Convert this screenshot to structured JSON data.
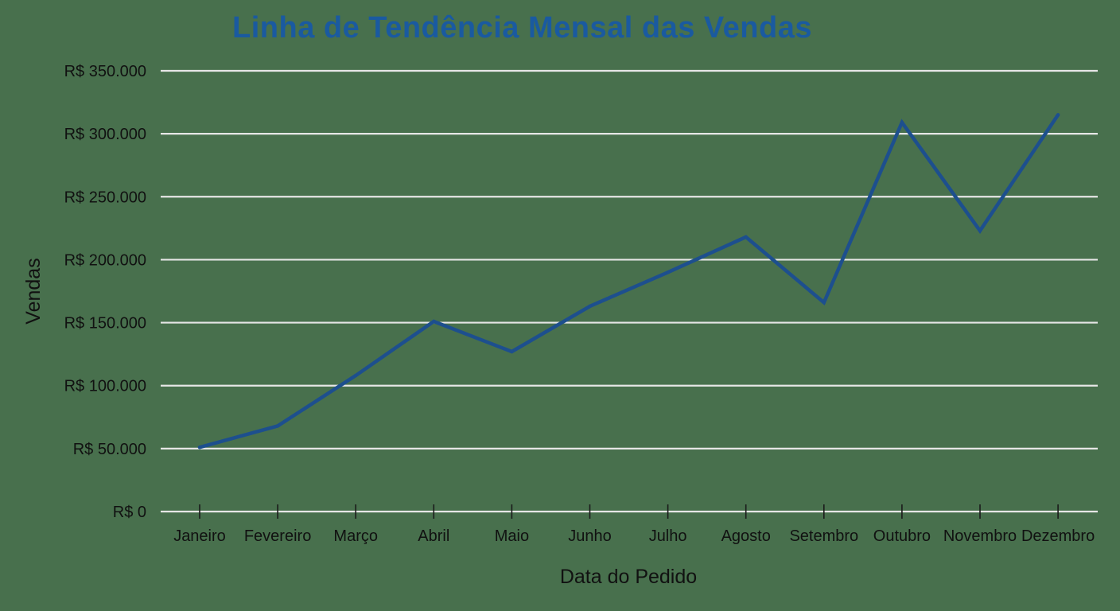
{
  "colors": {
    "background": "#48704d",
    "title": "#1a5aa0",
    "line": "#1d4f8e",
    "grid": "#e6e6e6",
    "text": "#111111"
  },
  "chart_data": {
    "type": "line",
    "title": "Linha de Tendência Mensal das Vendas",
    "xlabel": "Data do Pedido",
    "ylabel": "Vendas",
    "categories": [
      "Janeiro",
      "Fevereiro",
      "Março",
      "Abril",
      "Maio",
      "Junho",
      "Julho",
      "Agosto",
      "Setembro",
      "Outubro",
      "Novembro",
      "Dezembro"
    ],
    "series": [
      {
        "values": [
          51000,
          68000,
          108000,
          151000,
          127000,
          163000,
          190000,
          218000,
          166000,
          309000,
          223000,
          315000
        ]
      }
    ],
    "ylim": [
      0,
      350000
    ],
    "yticks": [
      0,
      50000,
      100000,
      150000,
      200000,
      250000,
      300000,
      350000
    ],
    "ytick_labels": [
      "R$ 0",
      "R$ 50.000",
      "R$ 100.000",
      "R$ 150.000",
      "R$ 200.000",
      "R$ 250.000",
      "R$ 300.000",
      "R$ 350.000"
    ],
    "grid": true,
    "legend": "none"
  }
}
